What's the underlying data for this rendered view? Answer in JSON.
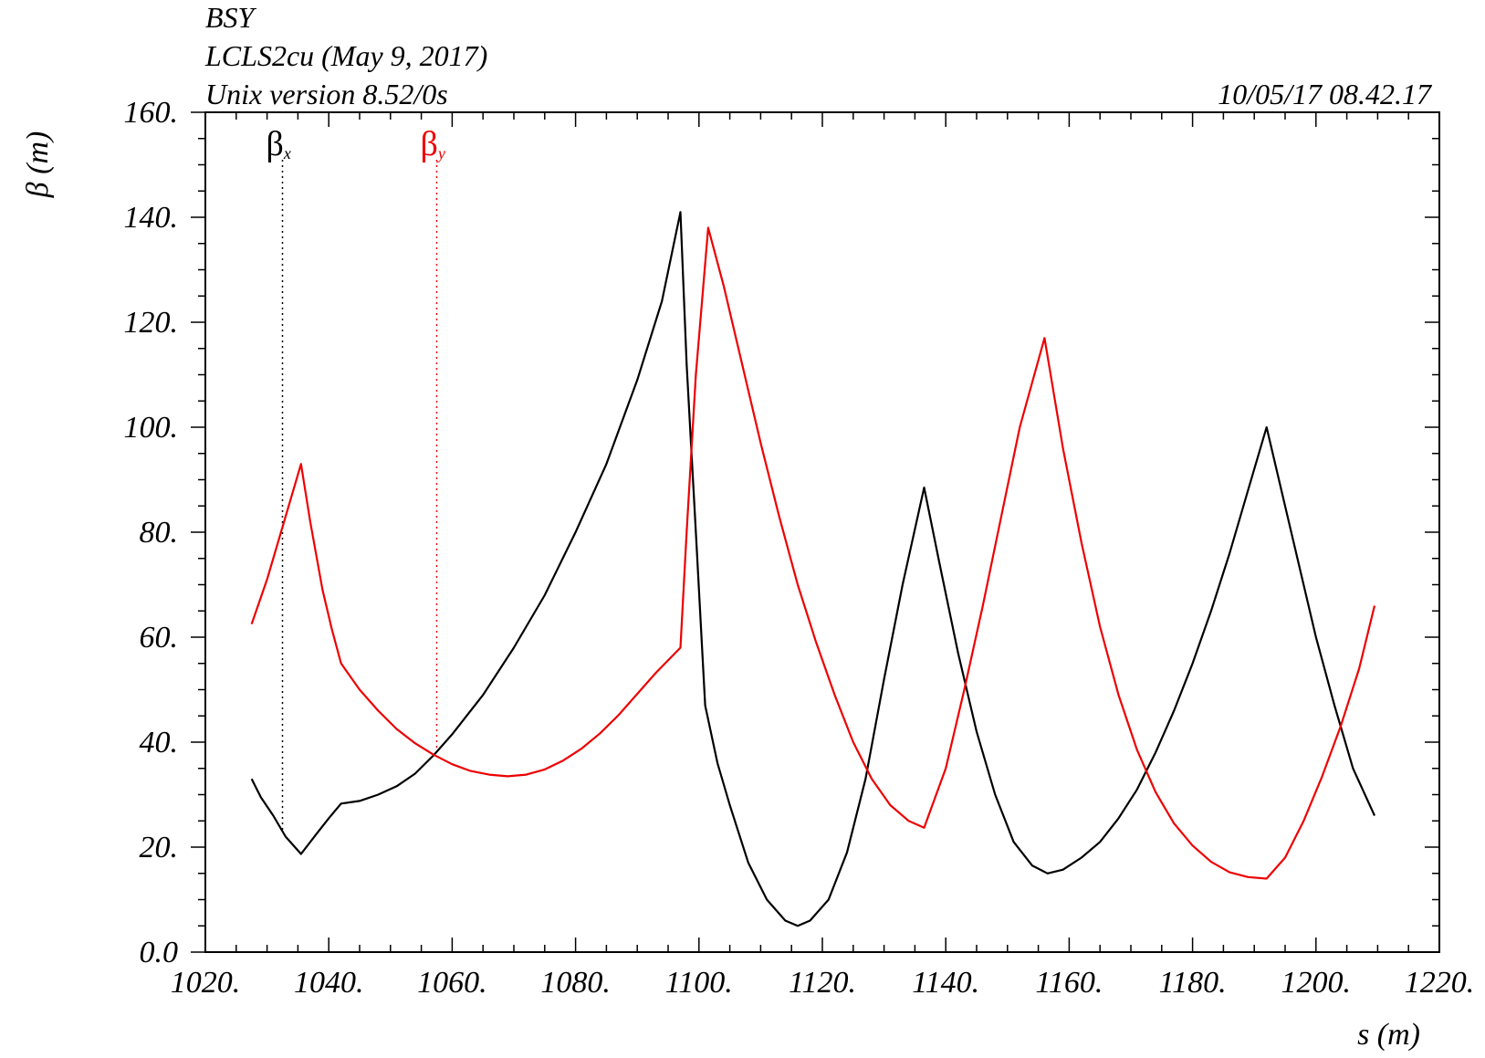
{
  "header": {
    "line1": "BSY",
    "line2": "LCLS2cu (May 9, 2017)",
    "line3": "Unix version 8.52/0s",
    "timestamp": "10/05/17  08.42.17"
  },
  "chart_data": {
    "type": "line",
    "xlabel": "s (m)",
    "ylabel": "β (m)",
    "xlim": [
      1020,
      1220
    ],
    "ylim": [
      0,
      160
    ],
    "x_ticks": [
      "1020.",
      "1040.",
      "1060.",
      "1080.",
      "1100.",
      "1120.",
      "1140.",
      "1160.",
      "1180.",
      "1200.",
      "1220."
    ],
    "y_ticks": [
      "0.0",
      "20.",
      "40.",
      "60.",
      "80.",
      "100.",
      "120.",
      "140.",
      "160."
    ],
    "grid": false,
    "legend": [
      {
        "label": "β",
        "subscript": "x",
        "color": "#000000",
        "marker_x": 1032.5
      },
      {
        "label": "β",
        "subscript": "y",
        "color": "#ee0000",
        "marker_x": 1057.5
      }
    ],
    "series": [
      {
        "name": "βx",
        "color": "#000000",
        "x": [
          1027.5,
          1029,
          1031,
          1033,
          1035.5,
          1038,
          1040,
          1042,
          1045,
          1048,
          1051,
          1054,
          1057,
          1060,
          1065,
          1070,
          1075,
          1080,
          1085,
          1090,
          1094,
          1097,
          1098,
          1099.5,
          1101,
          1103,
          1105,
          1108,
          1111,
          1114,
          1116,
          1118,
          1121,
          1124,
          1127,
          1130,
          1133,
          1136.5,
          1139,
          1142,
          1145,
          1148,
          1151,
          1154,
          1156.5,
          1159,
          1162,
          1165,
          1168,
          1171,
          1174,
          1177,
          1180,
          1183,
          1186,
          1189,
          1192,
          1194,
          1197,
          1200,
          1203,
          1206,
          1209.5
        ],
        "y": [
          33,
          29.5,
          26,
          22,
          18.7,
          22.5,
          25.5,
          28.3,
          28.8,
          30,
          31.6,
          34,
          37.5,
          41.5,
          49,
          58,
          68,
          80,
          93,
          109,
          124,
          141,
          112,
          80,
          47,
          36,
          28,
          17,
          10,
          6,
          5,
          6,
          10,
          19,
          33,
          52,
          70,
          88.5,
          74,
          57,
          42,
          30,
          21,
          16.5,
          15,
          15.7,
          18,
          21,
          25.5,
          31,
          38,
          46,
          55,
          65,
          76,
          88,
          100,
          90,
          75,
          60,
          47,
          35,
          26
        ]
      },
      {
        "name": "βy",
        "color": "#ee0000",
        "x": [
          1027.5,
          1030,
          1033,
          1035.5,
          1037,
          1039,
          1040.5,
          1042,
          1045,
          1048,
          1051,
          1054,
          1057,
          1060,
          1063,
          1066,
          1069,
          1072,
          1075,
          1078,
          1081,
          1084,
          1087,
          1090,
          1093,
          1097,
          1098,
          1099.5,
          1101.5,
          1104,
          1107,
          1110,
          1113,
          1116,
          1119,
          1122,
          1125,
          1128,
          1131,
          1134,
          1136.5,
          1140,
          1143,
          1146,
          1149,
          1152,
          1156,
          1159,
          1162,
          1165,
          1168,
          1171,
          1174,
          1177,
          1180,
          1183,
          1186,
          1189,
          1192,
          1195,
          1198,
          1201,
          1204,
          1207,
          1209.5
        ],
        "y": [
          62.5,
          71,
          83,
          93,
          82,
          69,
          61.5,
          55,
          50,
          46,
          42.5,
          39.8,
          37.6,
          35.8,
          34.5,
          33.8,
          33.5,
          33.8,
          34.8,
          36.5,
          38.8,
          41.7,
          45.2,
          49.2,
          53.2,
          58,
          80,
          110,
          138,
          127,
          112,
          97,
          83,
          70,
          59,
          49,
          40,
          33,
          28,
          25,
          23.7,
          35,
          50,
          66,
          83,
          100,
          117,
          96,
          78,
          62,
          49,
          38.5,
          30.5,
          24.5,
          20.3,
          17.2,
          15.2,
          14.3,
          14,
          18,
          25,
          33.5,
          43,
          54,
          66
        ]
      }
    ]
  }
}
